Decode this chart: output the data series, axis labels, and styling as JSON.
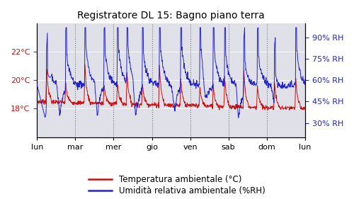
{
  "title": "Registratore DL 15: Bagno piano terra",
  "x_labels": [
    "lun",
    "mar",
    "mer",
    "gio",
    "ven",
    "sab",
    "dom",
    "lun"
  ],
  "temp_ylim": [
    16,
    24
  ],
  "temp_yticks": [
    18,
    20,
    22
  ],
  "temp_yticklabels": [
    "18°C",
    "20°C",
    "22°C"
  ],
  "rh_ylim": [
    20,
    100
  ],
  "rh_yticks": [
    30,
    45,
    60,
    75,
    90
  ],
  "rh_yticklabels": [
    "30% RH",
    "45% RH",
    "60% RH",
    "75% RH",
    "90% RH"
  ],
  "temp_color": "#cc1111",
  "rh_color": "#2222cc",
  "bg_color": "#e0e0e8",
  "grid_color": "#ffffff",
  "legend_temp": "Temperatura ambientale (°C)",
  "legend_rh": "Umidità relativa ambientale (%RH)",
  "title_fontsize": 10,
  "label_fontsize": 8.5,
  "tick_fontsize": 8,
  "n_days": 7,
  "n_points": 1008,
  "shower_times": [
    0.25,
    0.75,
    1.25,
    1.75,
    2.1,
    2.35,
    2.75,
    3.2,
    3.75,
    4.25,
    4.6,
    4.9,
    5.4,
    5.75,
    6.2,
    6.75
  ],
  "rh_drop_times": [
    0.5,
    1.5,
    2.5,
    3.5,
    4.3,
    5.2,
    6.1
  ],
  "temp_base": 18.5,
  "rh_base": 57.0
}
